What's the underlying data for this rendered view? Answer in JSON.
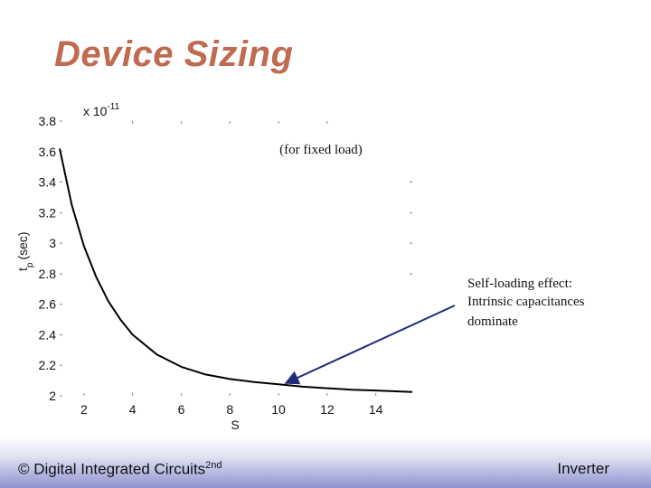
{
  "slide": {
    "title": "Device Sizing"
  },
  "chart_data": {
    "type": "line",
    "title": "",
    "xlabel": "S",
    "ylabel": "t_p (sec)",
    "ylabel_main": "t",
    "ylabel_sub": "p",
    "ylabel_unit": "(sec)",
    "y_exponent": "x 10",
    "y_exponent_power": "-11",
    "xlim": [
      1,
      15.5
    ],
    "ylim": [
      2.0,
      3.8
    ],
    "xticks": [
      "2",
      "4",
      "6",
      "8",
      "10",
      "12",
      "14"
    ],
    "yticks": [
      "2",
      "2.2",
      "2.4",
      "2.6",
      "2.8",
      "3",
      "3.2",
      "3.4",
      "3.6",
      "3.8"
    ],
    "grid": false,
    "series": [
      {
        "x": [
          1,
          1.5,
          2,
          2.5,
          3,
          3.5,
          4,
          5,
          6,
          7,
          8,
          9,
          10,
          11,
          12,
          13,
          14,
          15.5
        ],
        "y": [
          3.62,
          3.25,
          2.98,
          2.78,
          2.62,
          2.5,
          2.4,
          2.27,
          2.19,
          2.14,
          2.11,
          2.09,
          2.075,
          2.06,
          2.05,
          2.04,
          2.035,
          2.025
        ]
      }
    ],
    "annotations": [
      {
        "text": "(for fixed load)"
      },
      {
        "lines": [
          "Self-loading effect:",
          "Intrinsic capacitances",
          "dominate"
        ],
        "target_x": 10,
        "target_y": 2.07
      }
    ]
  },
  "footer": {
    "left_prefix": "© Digital Integrated Circuits",
    "left_sup": "2nd",
    "right": "Inverter"
  },
  "colors": {
    "title": "#c06a4f",
    "curve": "#000000",
    "arrow": "#1f2a7a",
    "footer_band": "#8d93cf"
  }
}
